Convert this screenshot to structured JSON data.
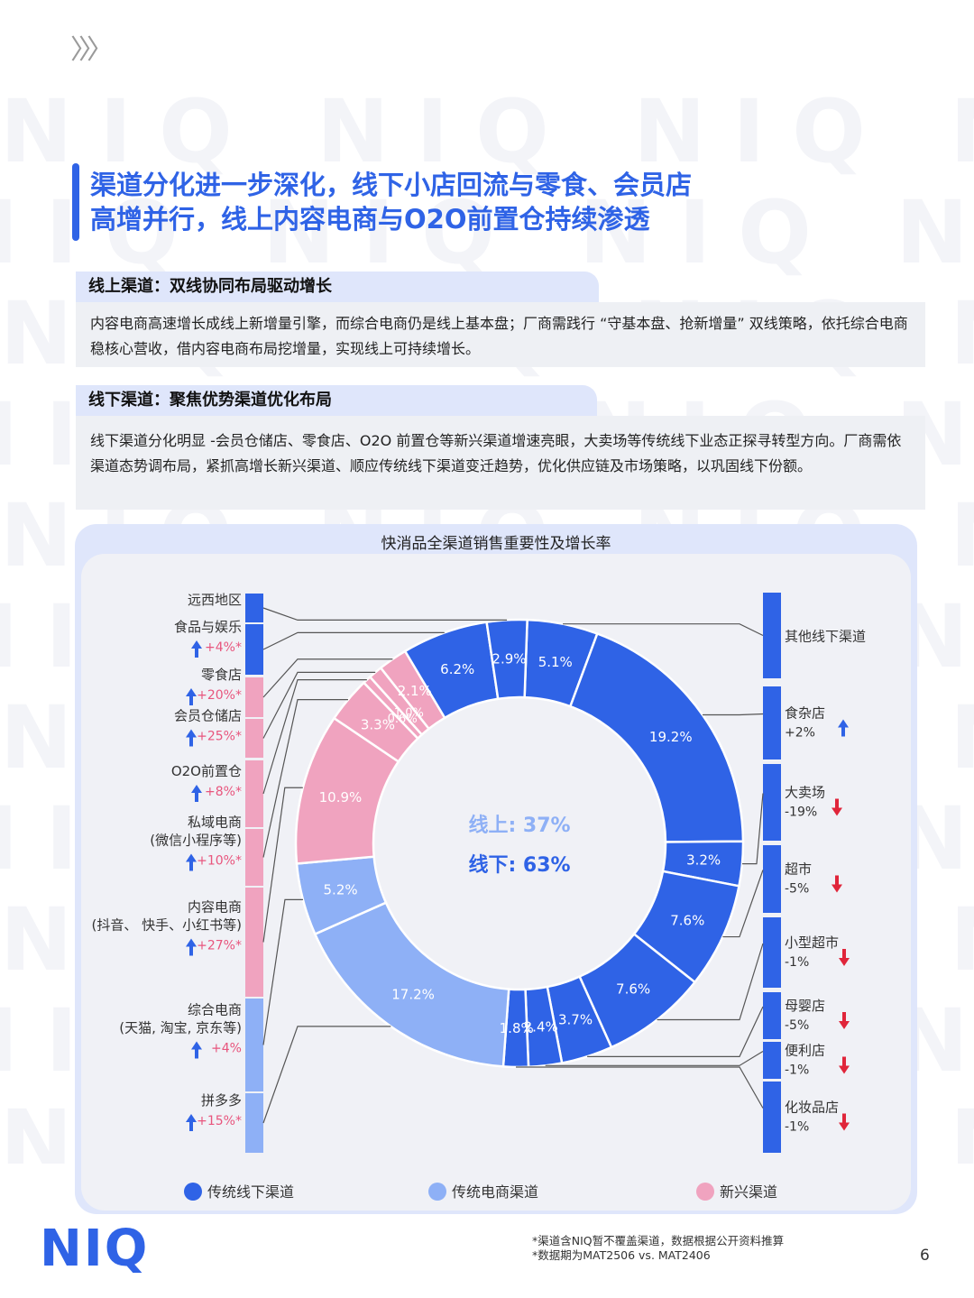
{
  "header": {
    "chevrons": "〉〉〉"
  },
  "watermark": "NIQ",
  "title": {
    "line1": "渠道分化进一步深化，线下小店回流与零食、会员店",
    "line2": "高增并行，线上内容电商与O2O前置仓持续渗透"
  },
  "sections": [
    {
      "heading": "线上渠道：双线协同布局驱动增长",
      "body": "内容电商高速增长成线上新增量引擎，而综合电商仍是线上基本盘；厂商需践行 “守基本盘、抢新增量” 双线策略，依托综合电商稳核心营收，借内容电商布局挖增量，实现线上可持续增长。"
    },
    {
      "heading": "线下渠道：聚焦优势渠道优化布局",
      "body": "线下渠道分化明显 -会员仓储店、零食店、O2O 前置仓等新兴渠道增速亮眼，大卖场等传统线下业态正探寻转型方向。厂商需依渠道态势调布局，紧抓高增长新兴渠道、顺应传统线下渠道变迁趋势，优化供应链及市场策略，以巩固线下份额。"
    }
  ],
  "chart_data": {
    "type": "pie",
    "title": "快消品全渠道销售重要性及增长率",
    "center_text": [
      "线上: 37%",
      "线下: 63%"
    ],
    "colors": {
      "traditional_offline": "#2f63e6",
      "traditional_ecom": "#8eb0f6",
      "emerging": "#f0a3bf",
      "up_arrow": "#2f63e6",
      "down_arrow": "#e0253a",
      "growth_text_pink": "#e8557d"
    },
    "slices": [
      {
        "value": 5.1,
        "label": "5.1%",
        "channel": "其他线下渠道",
        "growth": "",
        "dir": "",
        "category": "traditional_offline",
        "side": "right"
      },
      {
        "value": 19.2,
        "label": "19.2%",
        "channel": "食杂店",
        "growth": "+2%",
        "dir": "up",
        "category": "traditional_offline",
        "side": "right"
      },
      {
        "value": 3.2,
        "label": "3.2%",
        "channel": "大卖场",
        "growth": "-19%",
        "dir": "down",
        "category": "traditional_offline",
        "side": "right"
      },
      {
        "value": 7.6,
        "label": "7.6%",
        "channel": "超市",
        "growth": "-5%",
        "dir": "down",
        "category": "traditional_offline",
        "side": "right"
      },
      {
        "value": 7.6,
        "label": "7.6%",
        "channel": "小型超市",
        "growth": "-1%",
        "dir": "down",
        "category": "traditional_offline",
        "side": "right"
      },
      {
        "value": 3.7,
        "label": "3.7%",
        "channel": "母婴店",
        "growth": "-5%",
        "dir": "down",
        "category": "traditional_offline",
        "side": "right"
      },
      {
        "value": 2.4,
        "label": "2.4%",
        "channel": "便利店",
        "growth": "-1%",
        "dir": "down",
        "category": "traditional_offline",
        "side": "right"
      },
      {
        "value": 1.8,
        "label": "1.8%",
        "channel": "化妆品店",
        "growth": "-1%",
        "dir": "down",
        "category": "traditional_offline",
        "side": "right"
      },
      {
        "value": 17.2,
        "label": "17.2%",
        "channel": "拼多多",
        "growth": "+15%*",
        "dir": "up",
        "category": "traditional_ecom",
        "side": "left"
      },
      {
        "value": 5.2,
        "label": "5.2%",
        "channel": "综合电商",
        "sub": "(天猫, 淘宝, 京东等)",
        "growth": "+4%",
        "dir": "up",
        "category": "traditional_ecom",
        "side": "left"
      },
      {
        "value": 10.9,
        "label": "10.9%",
        "channel": "内容电商",
        "sub": "(抖音、 快手、小红书等)",
        "growth": "+27%*",
        "dir": "up",
        "category": "emerging",
        "side": "left"
      },
      {
        "value": 3.3,
        "label": "3.3%",
        "channel": "私域电商",
        "sub": "(微信小程序等)",
        "growth": "+10%*",
        "dir": "up",
        "category": "emerging",
        "side": "left"
      },
      {
        "value": 0.6,
        "label": "0.6%",
        "channel": "O2O前置仓",
        "growth": "+8%*",
        "dir": "up",
        "category": "emerging",
        "side": "left"
      },
      {
        "value": 1.0,
        "label": "1.0%",
        "channel": "会员仓储店",
        "growth": "+25%*",
        "dir": "up",
        "category": "emerging",
        "side": "left"
      },
      {
        "value": 2.1,
        "label": "2.1%",
        "channel": "零食店",
        "growth": "+20%*",
        "dir": "up",
        "category": "emerging",
        "side": "left"
      },
      {
        "value": 6.2,
        "label": "6.2%",
        "channel": "食品与娱乐",
        "growth": "+4%*",
        "dir": "up",
        "category": "traditional_offline",
        "side": "left"
      },
      {
        "value": 2.9,
        "label": "2.9%",
        "channel": "远西地区",
        "growth": "",
        "dir": "",
        "category": "traditional_offline",
        "side": "left"
      }
    ],
    "legend": [
      {
        "name": "传统线下渠道",
        "category": "traditional_offline"
      },
      {
        "name": "传统电商渠道",
        "category": "traditional_ecom"
      },
      {
        "name": "新兴渠道",
        "category": "emerging"
      }
    ]
  },
  "footer": {
    "logo": "NIQ",
    "notes": [
      "*渠道含NIQ暂不覆盖渠道，数据根据公开资料推算",
      "*数据期为MAT2506 vs. MAT2406"
    ],
    "page": "6"
  }
}
